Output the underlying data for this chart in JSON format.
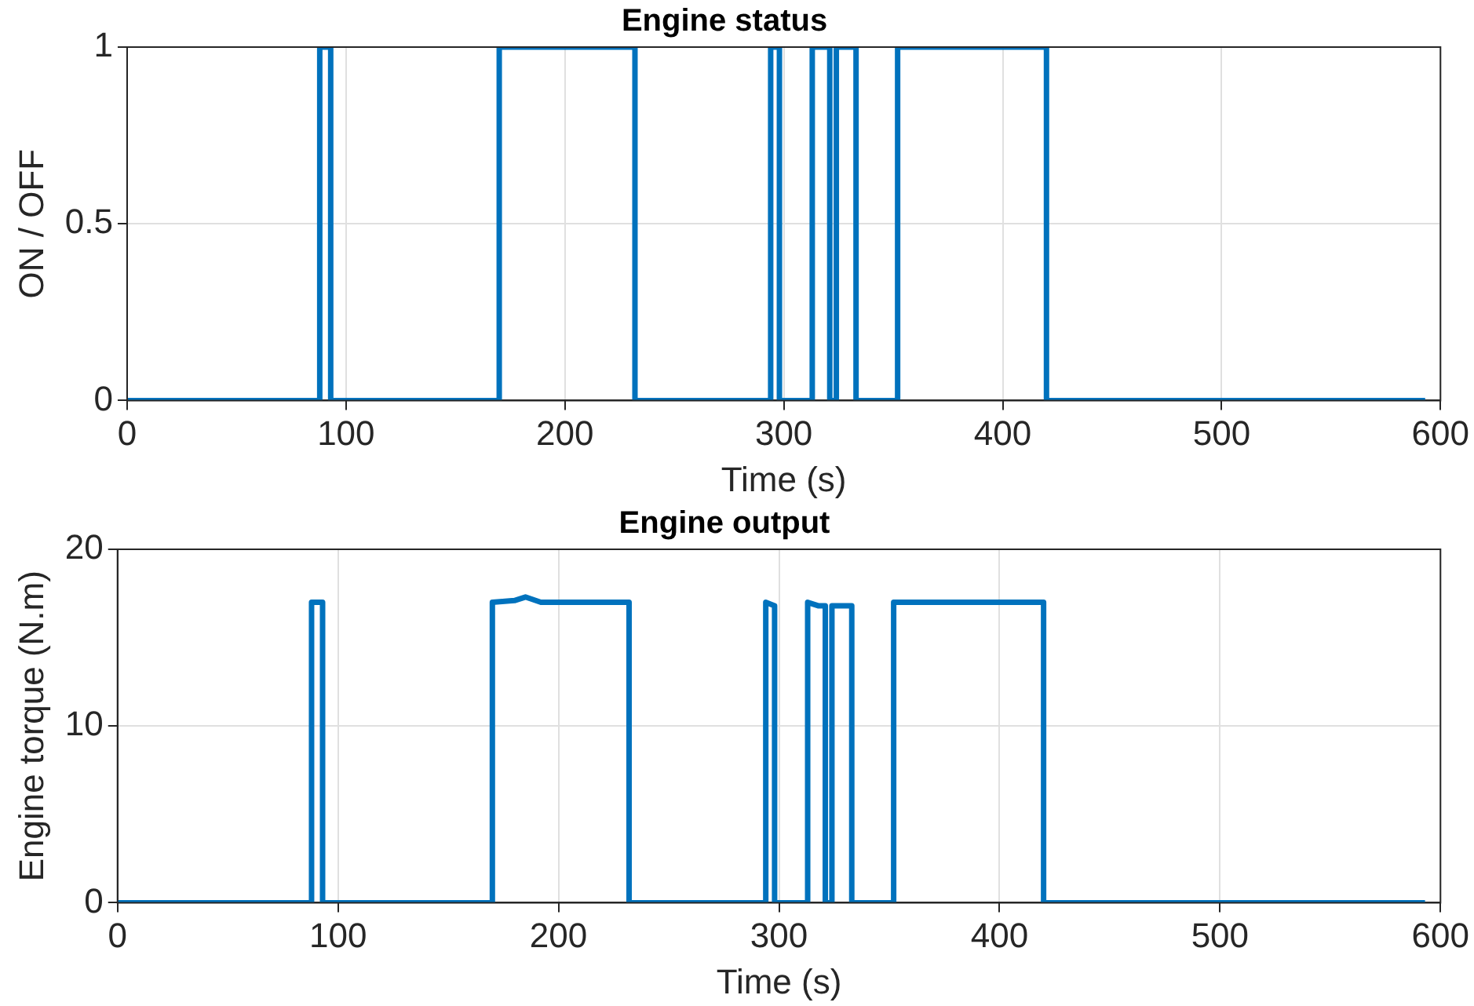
{
  "chart_data": [
    {
      "type": "line",
      "title": "Engine status",
      "xlabel": "Time (s)",
      "ylabel": "ON / OFF",
      "xlim": [
        0,
        600
      ],
      "xticks": [
        0,
        100,
        200,
        300,
        400,
        500,
        600
      ],
      "ylim": [
        0,
        1
      ],
      "yticks": [
        0,
        0.5,
        1
      ],
      "grid": true,
      "legend": false,
      "marker": "none",
      "line_style": "solid",
      "series": [
        {
          "color": "#0072bd",
          "x": [
            0,
            88,
            88,
            93,
            93,
            170,
            170,
            232,
            232,
            294,
            294,
            298,
            298,
            313,
            313,
            321,
            321,
            324,
            324,
            333,
            333,
            352,
            352,
            420,
            420,
            593
          ],
          "values": [
            0,
            0,
            1,
            1,
            0,
            0,
            1,
            1,
            0,
            0,
            1,
            1,
            0,
            0,
            1,
            1,
            0,
            0,
            1,
            1,
            0,
            0,
            1,
            1,
            0,
            0
          ]
        }
      ]
    },
    {
      "type": "line",
      "title": "Engine output",
      "xlabel": "Time (s)",
      "ylabel": "Engine torque (N.m)",
      "xlim": [
        0,
        600
      ],
      "xticks": [
        0,
        100,
        200,
        300,
        400,
        500,
        600
      ],
      "ylim": [
        0,
        20
      ],
      "yticks": [
        0,
        10,
        20
      ],
      "grid": true,
      "legend": false,
      "marker": "none",
      "line_style": "solid",
      "series": [
        {
          "color": "#0072bd",
          "x": [
            0,
            88,
            88,
            93,
            93,
            170,
            170,
            180,
            185,
            192,
            232,
            232,
            294,
            294,
            298,
            298,
            313,
            313,
            318,
            321,
            321,
            324,
            324,
            333,
            333,
            352,
            352,
            400,
            420,
            420,
            593
          ],
          "values": [
            0,
            0,
            17,
            17,
            0,
            0,
            17,
            17.1,
            17.3,
            17,
            17,
            0,
            0,
            17,
            16.8,
            0,
            0,
            17,
            16.8,
            16.8,
            0,
            0,
            16.8,
            16.8,
            0,
            0,
            17,
            17,
            17,
            0,
            0
          ]
        }
      ]
    }
  ]
}
